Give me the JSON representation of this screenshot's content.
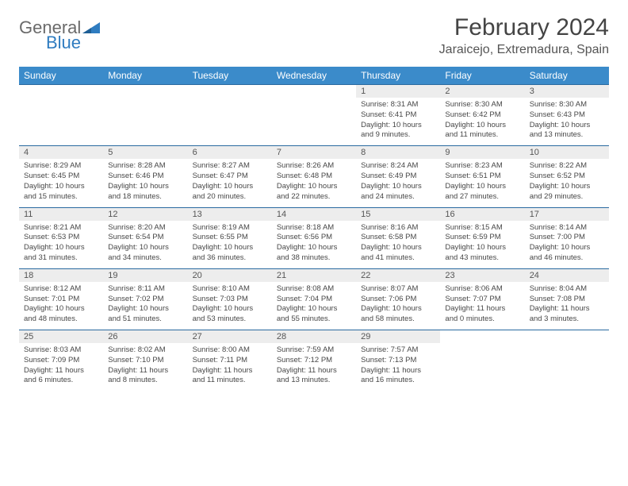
{
  "brand": {
    "word1": "General",
    "word2": "Blue",
    "logo_color": "#2f7cc0",
    "text_color": "#6a6a6a"
  },
  "title": "February 2024",
  "location": "Jaraicejo, Extremadura, Spain",
  "colors": {
    "header_bg": "#3b8bca",
    "header_text": "#ffffff",
    "row_border": "#2a6aa0",
    "daynum_bg": "#ededed",
    "body_text": "#474747"
  },
  "day_headers": [
    "Sunday",
    "Monday",
    "Tuesday",
    "Wednesday",
    "Thursday",
    "Friday",
    "Saturday"
  ],
  "weeks": [
    [
      {
        "blank": true
      },
      {
        "blank": true
      },
      {
        "blank": true
      },
      {
        "blank": true
      },
      {
        "n": "1",
        "sr": "Sunrise: 8:31 AM",
        "ss": "Sunset: 6:41 PM",
        "dl": "Daylight: 10 hours and 9 minutes."
      },
      {
        "n": "2",
        "sr": "Sunrise: 8:30 AM",
        "ss": "Sunset: 6:42 PM",
        "dl": "Daylight: 10 hours and 11 minutes."
      },
      {
        "n": "3",
        "sr": "Sunrise: 8:30 AM",
        "ss": "Sunset: 6:43 PM",
        "dl": "Daylight: 10 hours and 13 minutes."
      }
    ],
    [
      {
        "n": "4",
        "sr": "Sunrise: 8:29 AM",
        "ss": "Sunset: 6:45 PM",
        "dl": "Daylight: 10 hours and 15 minutes."
      },
      {
        "n": "5",
        "sr": "Sunrise: 8:28 AM",
        "ss": "Sunset: 6:46 PM",
        "dl": "Daylight: 10 hours and 18 minutes."
      },
      {
        "n": "6",
        "sr": "Sunrise: 8:27 AM",
        "ss": "Sunset: 6:47 PM",
        "dl": "Daylight: 10 hours and 20 minutes."
      },
      {
        "n": "7",
        "sr": "Sunrise: 8:26 AM",
        "ss": "Sunset: 6:48 PM",
        "dl": "Daylight: 10 hours and 22 minutes."
      },
      {
        "n": "8",
        "sr": "Sunrise: 8:24 AM",
        "ss": "Sunset: 6:49 PM",
        "dl": "Daylight: 10 hours and 24 minutes."
      },
      {
        "n": "9",
        "sr": "Sunrise: 8:23 AM",
        "ss": "Sunset: 6:51 PM",
        "dl": "Daylight: 10 hours and 27 minutes."
      },
      {
        "n": "10",
        "sr": "Sunrise: 8:22 AM",
        "ss": "Sunset: 6:52 PM",
        "dl": "Daylight: 10 hours and 29 minutes."
      }
    ],
    [
      {
        "n": "11",
        "sr": "Sunrise: 8:21 AM",
        "ss": "Sunset: 6:53 PM",
        "dl": "Daylight: 10 hours and 31 minutes."
      },
      {
        "n": "12",
        "sr": "Sunrise: 8:20 AM",
        "ss": "Sunset: 6:54 PM",
        "dl": "Daylight: 10 hours and 34 minutes."
      },
      {
        "n": "13",
        "sr": "Sunrise: 8:19 AM",
        "ss": "Sunset: 6:55 PM",
        "dl": "Daylight: 10 hours and 36 minutes."
      },
      {
        "n": "14",
        "sr": "Sunrise: 8:18 AM",
        "ss": "Sunset: 6:56 PM",
        "dl": "Daylight: 10 hours and 38 minutes."
      },
      {
        "n": "15",
        "sr": "Sunrise: 8:16 AM",
        "ss": "Sunset: 6:58 PM",
        "dl": "Daylight: 10 hours and 41 minutes."
      },
      {
        "n": "16",
        "sr": "Sunrise: 8:15 AM",
        "ss": "Sunset: 6:59 PM",
        "dl": "Daylight: 10 hours and 43 minutes."
      },
      {
        "n": "17",
        "sr": "Sunrise: 8:14 AM",
        "ss": "Sunset: 7:00 PM",
        "dl": "Daylight: 10 hours and 46 minutes."
      }
    ],
    [
      {
        "n": "18",
        "sr": "Sunrise: 8:12 AM",
        "ss": "Sunset: 7:01 PM",
        "dl": "Daylight: 10 hours and 48 minutes."
      },
      {
        "n": "19",
        "sr": "Sunrise: 8:11 AM",
        "ss": "Sunset: 7:02 PM",
        "dl": "Daylight: 10 hours and 51 minutes."
      },
      {
        "n": "20",
        "sr": "Sunrise: 8:10 AM",
        "ss": "Sunset: 7:03 PM",
        "dl": "Daylight: 10 hours and 53 minutes."
      },
      {
        "n": "21",
        "sr": "Sunrise: 8:08 AM",
        "ss": "Sunset: 7:04 PM",
        "dl": "Daylight: 10 hours and 55 minutes."
      },
      {
        "n": "22",
        "sr": "Sunrise: 8:07 AM",
        "ss": "Sunset: 7:06 PM",
        "dl": "Daylight: 10 hours and 58 minutes."
      },
      {
        "n": "23",
        "sr": "Sunrise: 8:06 AM",
        "ss": "Sunset: 7:07 PM",
        "dl": "Daylight: 11 hours and 0 minutes."
      },
      {
        "n": "24",
        "sr": "Sunrise: 8:04 AM",
        "ss": "Sunset: 7:08 PM",
        "dl": "Daylight: 11 hours and 3 minutes."
      }
    ],
    [
      {
        "n": "25",
        "sr": "Sunrise: 8:03 AM",
        "ss": "Sunset: 7:09 PM",
        "dl": "Daylight: 11 hours and 6 minutes."
      },
      {
        "n": "26",
        "sr": "Sunrise: 8:02 AM",
        "ss": "Sunset: 7:10 PM",
        "dl": "Daylight: 11 hours and 8 minutes."
      },
      {
        "n": "27",
        "sr": "Sunrise: 8:00 AM",
        "ss": "Sunset: 7:11 PM",
        "dl": "Daylight: 11 hours and 11 minutes."
      },
      {
        "n": "28",
        "sr": "Sunrise: 7:59 AM",
        "ss": "Sunset: 7:12 PM",
        "dl": "Daylight: 11 hours and 13 minutes."
      },
      {
        "n": "29",
        "sr": "Sunrise: 7:57 AM",
        "ss": "Sunset: 7:13 PM",
        "dl": "Daylight: 11 hours and 16 minutes."
      },
      {
        "blank": true
      },
      {
        "blank": true
      }
    ]
  ]
}
